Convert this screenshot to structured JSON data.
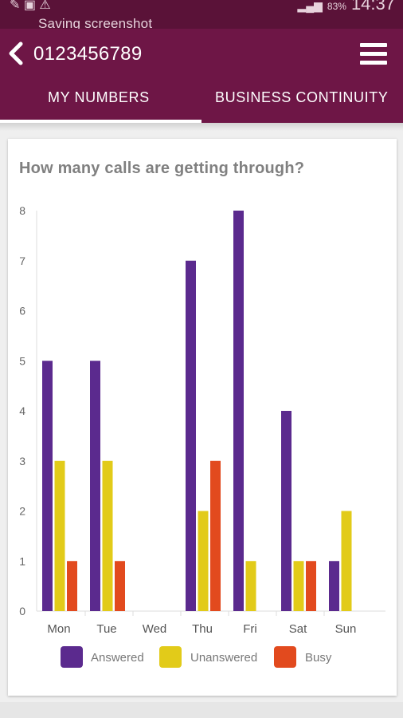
{
  "status_bar": {
    "notification": "Saving screenshot",
    "battery": "83%",
    "time": "14:37"
  },
  "app_bar": {
    "title": "0123456789",
    "tabs": [
      {
        "label": "MY  NUMBERS",
        "active": true
      },
      {
        "label": "BUSINESS  CONTINUITY",
        "active": false
      }
    ]
  },
  "colors": {
    "primary": "#6e1646",
    "status_bar": "#5a1238",
    "answered": "#5b2a8e",
    "unanswered": "#e2cb19",
    "busy": "#e24a1e"
  },
  "card": {
    "title": "How many calls are getting through?"
  },
  "chart_data": {
    "type": "bar",
    "title": "How many calls are getting through?",
    "categories": [
      "Mon",
      "Tue",
      "Wed",
      "Thu",
      "Fri",
      "Sat",
      "Sun"
    ],
    "series": [
      {
        "name": "Answered",
        "values": [
          5,
          5,
          0,
          7,
          8,
          4,
          1
        ]
      },
      {
        "name": "Unanswered",
        "values": [
          3,
          3,
          0,
          2,
          1,
          1,
          2
        ]
      },
      {
        "name": "Busy",
        "values": [
          1,
          1,
          0,
          3,
          0,
          1,
          0
        ]
      }
    ],
    "ylim": [
      0,
      8
    ],
    "yticks": [
      0,
      1,
      2,
      3,
      4,
      5,
      6,
      7,
      8
    ],
    "legend_position": "bottom",
    "grid": false
  }
}
